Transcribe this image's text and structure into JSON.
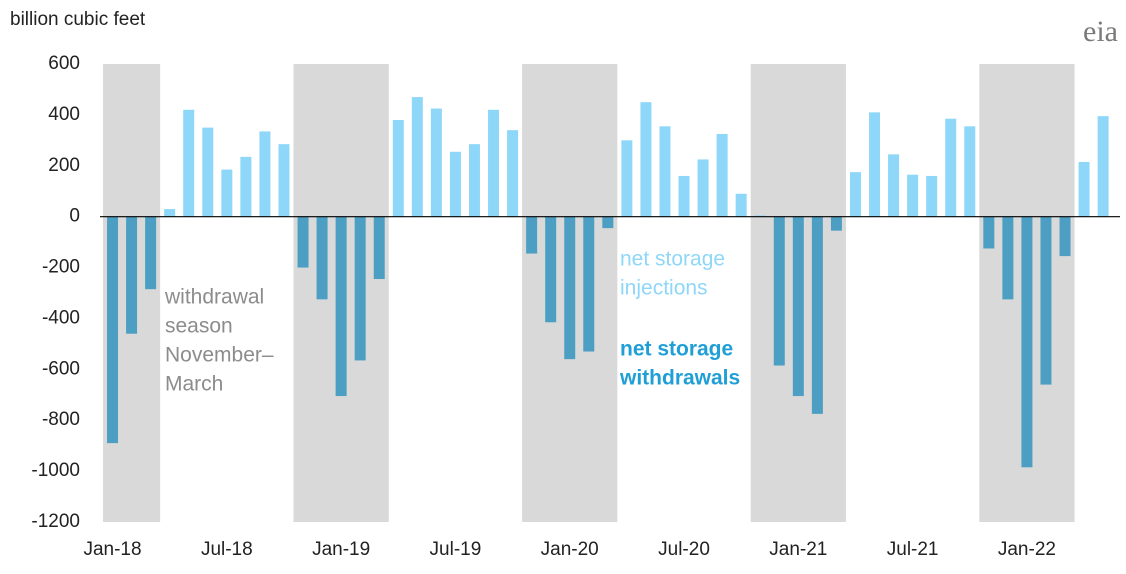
{
  "chart_data": {
    "type": "bar",
    "y_axis_label": "billion cubic feet",
    "logo": "eia",
    "categories": [
      "Jan-18",
      null,
      null,
      null,
      null,
      null,
      "Jul-18",
      null,
      null,
      null,
      null,
      null,
      "Jan-19",
      null,
      null,
      null,
      null,
      null,
      "Jul-19",
      null,
      null,
      null,
      null,
      null,
      "Jan-20",
      null,
      null,
      null,
      null,
      null,
      "Jul-20",
      null,
      null,
      null,
      null,
      null,
      "Jan-21",
      null,
      null,
      null,
      null,
      null,
      "Jul-21",
      null,
      null,
      null,
      null,
      null,
      "Jan-22",
      null,
      null,
      null,
      null
    ],
    "values": [
      -890,
      -460,
      -285,
      30,
      420,
      350,
      185,
      235,
      335,
      285,
      -200,
      -325,
      -705,
      -565,
      -245,
      380,
      470,
      425,
      255,
      285,
      420,
      340,
      -145,
      -415,
      -560,
      -530,
      -45,
      300,
      450,
      355,
      160,
      225,
      325,
      90,
      5,
      -585,
      -705,
      -775,
      -55,
      175,
      410,
      245,
      165,
      160,
      385,
      355,
      -125,
      -325,
      -985,
      -660,
      -155,
      215,
      395
    ],
    "colors": {
      "positive": "#8fd7f8",
      "negative": "#4c9fc3"
    },
    "shade_color": "#d9d9d9",
    "ylim": [
      -1200,
      600
    ],
    "yticks": [
      -1200,
      -1000,
      -800,
      -600,
      -400,
      -200,
      0,
      200,
      400,
      600
    ],
    "annotations": [
      {
        "lines": [
          "withdrawal",
          "season",
          "November–",
          "March"
        ],
        "color": "#8c8c8c"
      },
      {
        "lines": [
          "net storage",
          "injections"
        ],
        "color": "#8fd7f8"
      },
      {
        "lines": [
          "net storage",
          "withdrawals"
        ],
        "color": "#1f9fd6"
      }
    ]
  }
}
